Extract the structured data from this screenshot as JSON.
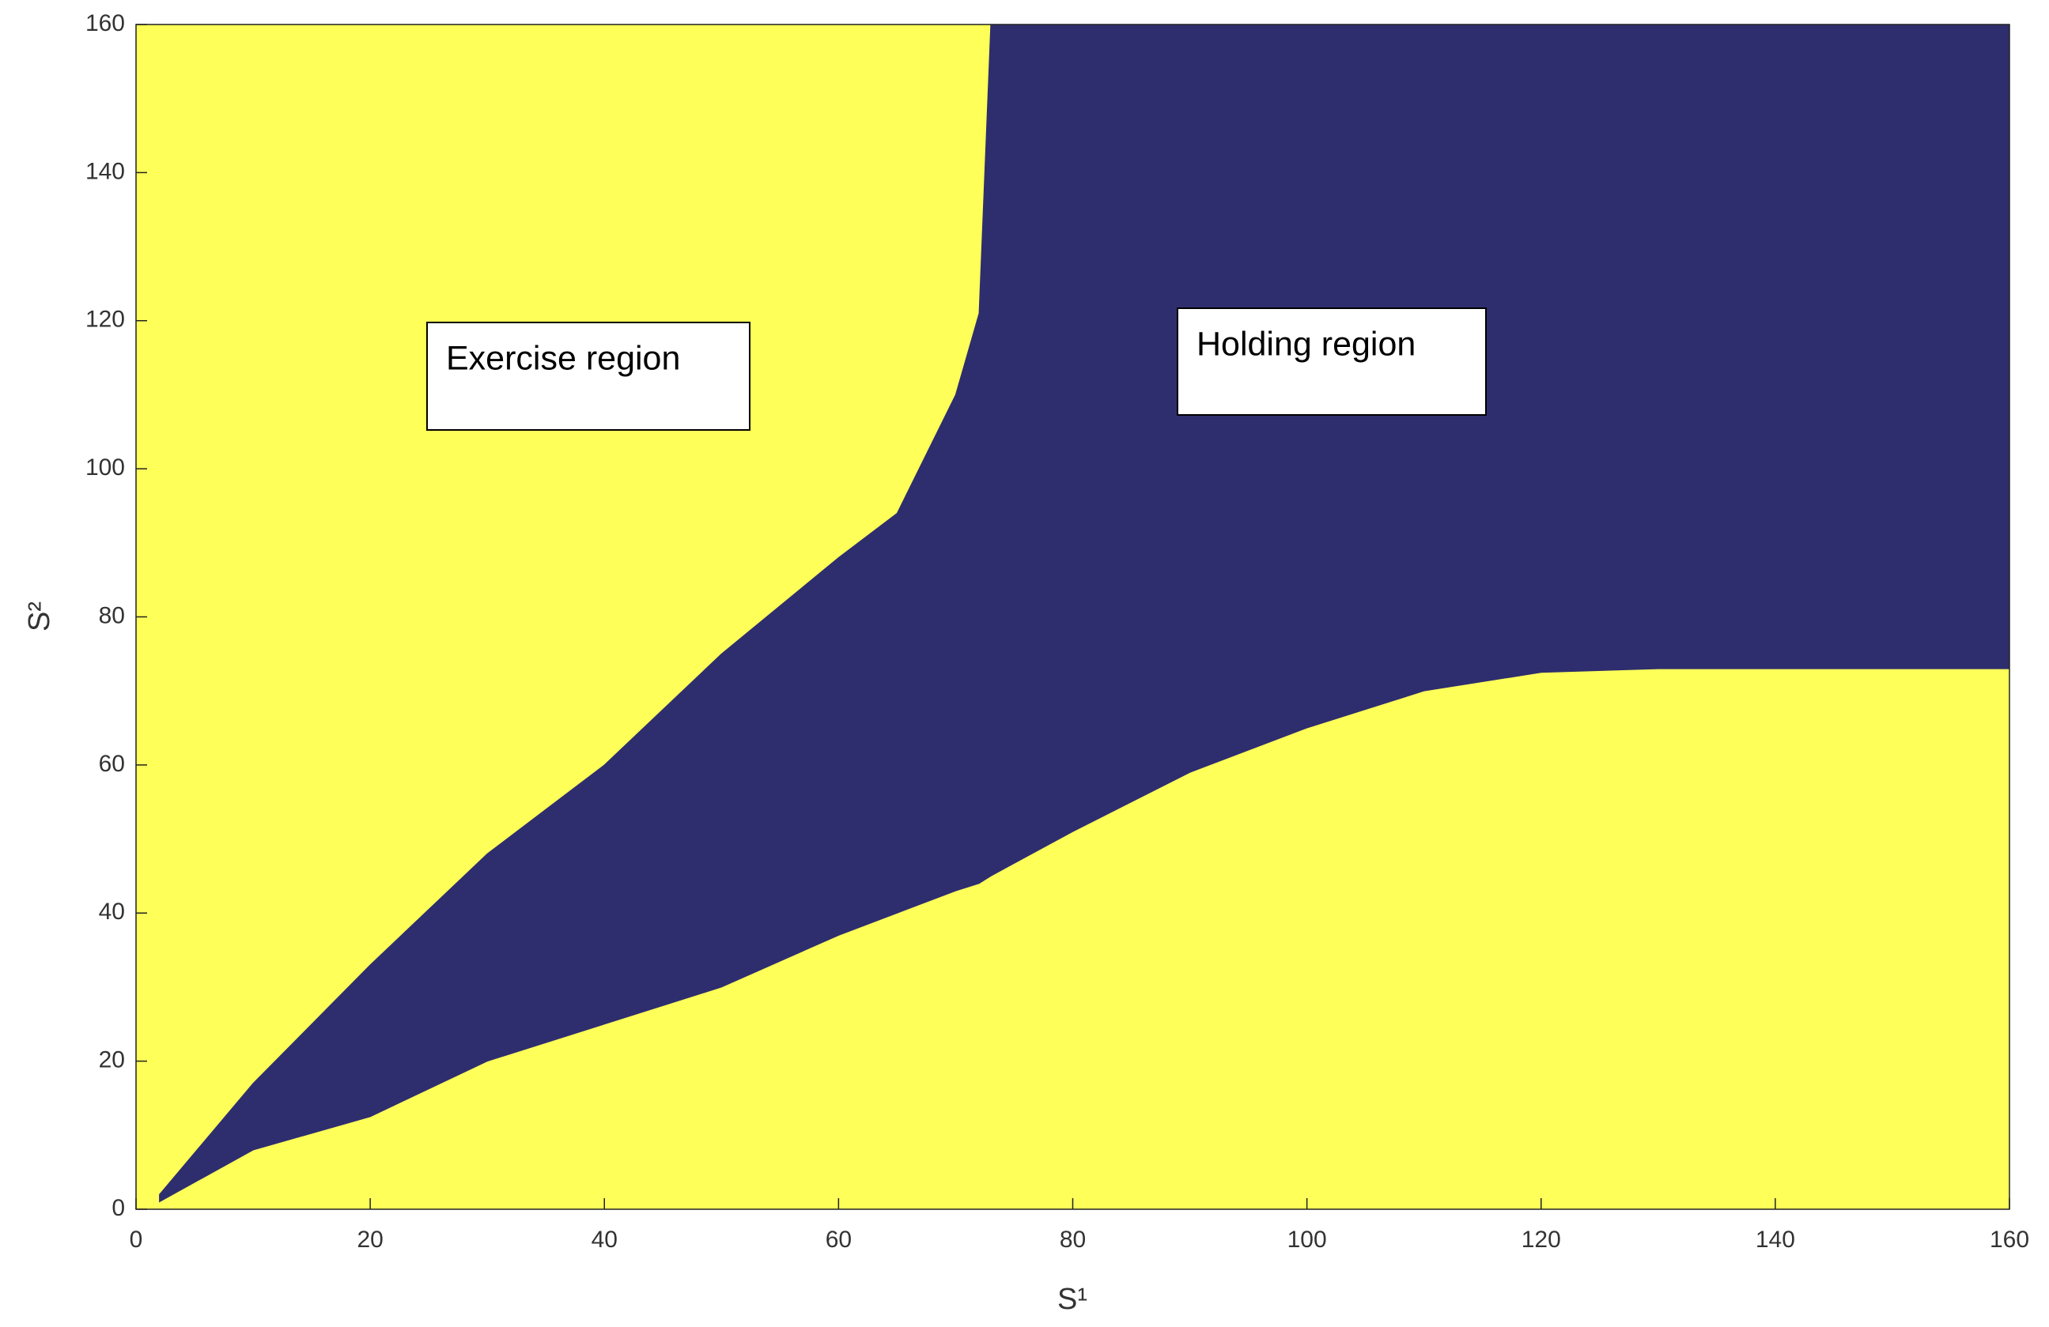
{
  "chart_data": {
    "type": "region",
    "x_label": "S¹",
    "y_label": "S²",
    "x": [
      2,
      10,
      20,
      30,
      40,
      50,
      60,
      65,
      70,
      72,
      73,
      80,
      90,
      100,
      110,
      120,
      130,
      140,
      150,
      160
    ],
    "series": [
      {
        "color": "#2e2e6e",
        "values": [
          2,
          17,
          33,
          48,
          60,
          75,
          88,
          94,
          110,
          121,
          160,
          160,
          160,
          160,
          160,
          160,
          160,
          160,
          160,
          160
        ]
      },
      {
        "color": "#2e2e6e",
        "values": [
          1,
          8,
          12.5,
          20,
          25,
          30,
          37,
          40,
          43,
          44,
          45,
          51,
          59,
          65,
          70,
          72.5,
          73,
          73,
          73,
          73
        ]
      }
    ],
    "background_color": "#ffff5a",
    "xlim": [
      0,
      160
    ],
    "ylim": [
      0,
      160
    ],
    "xticks": [
      0,
      20,
      40,
      60,
      80,
      100,
      120,
      140,
      160
    ],
    "yticks": [
      0,
      20,
      40,
      60,
      80,
      100,
      120,
      140,
      160
    ],
    "annotations": [
      "Exercise region",
      "Holding region"
    ]
  }
}
